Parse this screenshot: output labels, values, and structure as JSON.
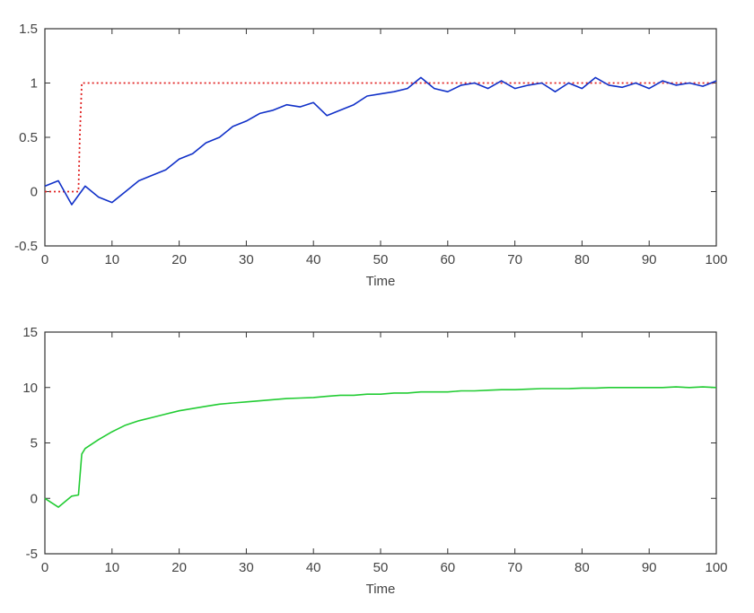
{
  "chart_data": [
    {
      "type": "line",
      "xlabel": "Time",
      "ylabel": "",
      "xlim": [
        0,
        100
      ],
      "ylim": [
        -0.5,
        1.5
      ],
      "xticks": [
        0,
        10,
        20,
        30,
        40,
        50,
        60,
        70,
        80,
        90,
        100
      ],
      "yticks": [
        -0.5,
        0,
        0.5,
        1,
        1.5
      ],
      "ytick_labels": [
        "-0.5",
        "0",
        "0.5",
        "1",
        "1.5"
      ],
      "grid": false,
      "series": [
        {
          "style": "dotted",
          "color": "#e02020",
          "x": [
            0,
            5,
            5.2,
            5.5,
            100
          ],
          "y": [
            0,
            0,
            0.5,
            1,
            1
          ]
        },
        {
          "style": "solid",
          "color": "#1030c8",
          "x": [
            0,
            2,
            4,
            6,
            8,
            10,
            12,
            14,
            16,
            18,
            20,
            22,
            24,
            26,
            28,
            30,
            32,
            34,
            36,
            38,
            40,
            42,
            44,
            46,
            48,
            50,
            52,
            54,
            56,
            58,
            60,
            62,
            64,
            66,
            68,
            70,
            72,
            74,
            76,
            78,
            80,
            82,
            84,
            86,
            88,
            90,
            92,
            94,
            96,
            98,
            100
          ],
          "y": [
            0.05,
            0.1,
            -0.12,
            0.05,
            -0.05,
            -0.1,
            0.0,
            0.1,
            0.15,
            0.2,
            0.3,
            0.35,
            0.45,
            0.5,
            0.6,
            0.65,
            0.72,
            0.75,
            0.8,
            0.78,
            0.82,
            0.7,
            0.75,
            0.8,
            0.88,
            0.9,
            0.92,
            0.95,
            1.05,
            0.95,
            0.92,
            0.98,
            1.0,
            0.95,
            1.02,
            0.95,
            0.98,
            1.0,
            0.92,
            1.0,
            0.95,
            1.05,
            0.98,
            0.96,
            1.0,
            0.95,
            1.02,
            0.98,
            1.0,
            0.97,
            1.02
          ]
        }
      ]
    },
    {
      "type": "line",
      "xlabel": "Time",
      "ylabel": "",
      "xlim": [
        0,
        100
      ],
      "ylim": [
        -5,
        15
      ],
      "xticks": [
        0,
        10,
        20,
        30,
        40,
        50,
        60,
        70,
        80,
        90,
        100
      ],
      "yticks": [
        -5,
        0,
        5,
        10,
        15
      ],
      "ytick_labels": [
        "-5",
        "0",
        "5",
        "10",
        "15"
      ],
      "grid": false,
      "series": [
        {
          "style": "solid",
          "color": "#22cc33",
          "x": [
            0,
            2,
            4,
            5,
            5.5,
            6,
            8,
            10,
            12,
            14,
            16,
            18,
            20,
            22,
            24,
            26,
            28,
            30,
            32,
            34,
            36,
            38,
            40,
            42,
            44,
            46,
            48,
            50,
            52,
            54,
            56,
            58,
            60,
            62,
            64,
            66,
            68,
            70,
            72,
            74,
            76,
            78,
            80,
            82,
            84,
            86,
            88,
            90,
            92,
            94,
            96,
            98,
            100
          ],
          "y": [
            0,
            -0.8,
            0.2,
            0.3,
            4.0,
            4.5,
            5.3,
            6.0,
            6.6,
            7.0,
            7.3,
            7.6,
            7.9,
            8.1,
            8.3,
            8.5,
            8.6,
            8.7,
            8.8,
            8.9,
            9.0,
            9.05,
            9.1,
            9.2,
            9.3,
            9.3,
            9.4,
            9.4,
            9.5,
            9.5,
            9.6,
            9.6,
            9.6,
            9.7,
            9.7,
            9.75,
            9.8,
            9.8,
            9.85,
            9.9,
            9.9,
            9.9,
            9.95,
            9.95,
            10.0,
            10.0,
            10.0,
            10.0,
            10.0,
            10.05,
            10.0,
            10.05,
            10.0
          ]
        }
      ]
    }
  ]
}
